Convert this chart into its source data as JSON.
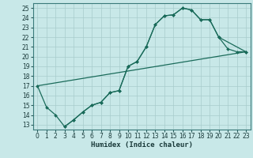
{
  "xlabel": "Humidex (Indice chaleur)",
  "bg_color": "#c8e8e8",
  "grid_color": "#a8cccc",
  "line_color": "#1a6b5a",
  "xlim": [
    -0.5,
    23.5
  ],
  "ylim": [
    12.5,
    25.5
  ],
  "xticks": [
    0,
    1,
    2,
    3,
    4,
    5,
    6,
    7,
    8,
    9,
    10,
    11,
    12,
    13,
    14,
    15,
    16,
    17,
    18,
    19,
    20,
    21,
    22,
    23
  ],
  "yticks": [
    13,
    14,
    15,
    16,
    17,
    18,
    19,
    20,
    21,
    22,
    23,
    24,
    25
  ],
  "line1_x": [
    0,
    1,
    2,
    3,
    4,
    5,
    6,
    7,
    8,
    9,
    10,
    11,
    12,
    13,
    14,
    15,
    16,
    17,
    18,
    19,
    20,
    21,
    22,
    23
  ],
  "line1_y": [
    17.0,
    14.8,
    14.0,
    12.8,
    13.5,
    14.3,
    15.0,
    15.3,
    16.3,
    16.5,
    19.0,
    19.5,
    21.0,
    23.3,
    24.2,
    24.3,
    25.0,
    24.8,
    23.8,
    23.8,
    22.0,
    20.8,
    20.5,
    20.5
  ],
  "line2_x": [
    0,
    23
  ],
  "line2_y": [
    17.0,
    20.5
  ],
  "line3_x": [
    3,
    4,
    5,
    6,
    7,
    8,
    9,
    10,
    11,
    12,
    13,
    14,
    15,
    16,
    17,
    18,
    19,
    20,
    23
  ],
  "line3_y": [
    12.8,
    13.5,
    14.3,
    15.0,
    15.3,
    16.3,
    16.5,
    19.0,
    19.5,
    21.0,
    23.3,
    24.2,
    24.3,
    25.0,
    24.8,
    23.8,
    23.8,
    22.0,
    20.5
  ],
  "xlabel_fontsize": 6.5,
  "tick_fontsize": 5.5
}
